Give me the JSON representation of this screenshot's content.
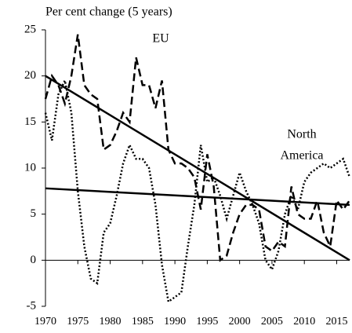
{
  "chart_data": {
    "type": "line",
    "title": "Per cent change (5 years)",
    "x": [
      1970,
      1971,
      1972,
      1973,
      1974,
      1975,
      1976,
      1977,
      1978,
      1979,
      1980,
      1981,
      1982,
      1983,
      1984,
      1985,
      1986,
      1987,
      1988,
      1989,
      1990,
      1991,
      1992,
      1993,
      1994,
      1995,
      1996,
      1997,
      1998,
      1999,
      2000,
      2001,
      2002,
      2003,
      2004,
      2005,
      2006,
      2007,
      2008,
      2009,
      2010,
      2011,
      2012,
      2013,
      2014,
      2015,
      2016,
      2017
    ],
    "series": [
      {
        "color": "#000000",
        "dash": "dashed",
        "values": [
          17.5,
          20,
          19,
          17,
          20,
          24.5,
          19,
          18,
          17.5,
          12,
          12.5,
          14,
          16,
          15,
          22,
          19,
          19,
          16.5,
          19.5,
          12,
          10.5,
          10.5,
          10,
          9,
          5.5,
          11.5,
          8,
          0,
          0.5,
          3,
          5,
          6,
          6,
          5.5,
          1.5,
          1,
          2,
          1.5,
          8,
          5,
          4.5,
          4.5,
          6.5,
          3,
          1.5,
          6.5,
          5.5,
          6.5
        ]
      },
      {
        "color": "#000000",
        "dash": "dotted",
        "values": [
          16,
          13,
          18,
          19.5,
          16,
          7.5,
          1.5,
          -2,
          -2.5,
          3,
          4,
          7,
          10.5,
          12.5,
          11,
          11,
          10,
          6,
          -0.5,
          -4.5,
          -4,
          -3.5,
          1.5,
          6,
          12.5,
          8.5,
          9,
          7,
          4.5,
          7,
          9.5,
          7.5,
          6,
          4,
          0,
          -1,
          1,
          5,
          7,
          5.5,
          8.5,
          9.5,
          10,
          10.5,
          10,
          10.5,
          11,
          9
        ]
      }
    ],
    "trendlines": [
      {
        "x": [
          1970,
          2017
        ],
        "values": [
          20,
          0
        ]
      },
      {
        "x": [
          1970,
          2017
        ],
        "values": [
          7.8,
          6
        ]
      }
    ],
    "annotations": [
      {
        "lines": [
          "EU"
        ]
      },
      {
        "lines": [
          "North",
          "America"
        ]
      }
    ],
    "xlim": [
      1970,
      2017
    ],
    "xticks": [
      1970,
      1975,
      1980,
      1985,
      1990,
      1995,
      2000,
      2005,
      2010,
      2015
    ],
    "ylim": [
      -5,
      25
    ],
    "yticks": [
      -5,
      0,
      5,
      10,
      15,
      20,
      25
    ],
    "grid": false
  }
}
